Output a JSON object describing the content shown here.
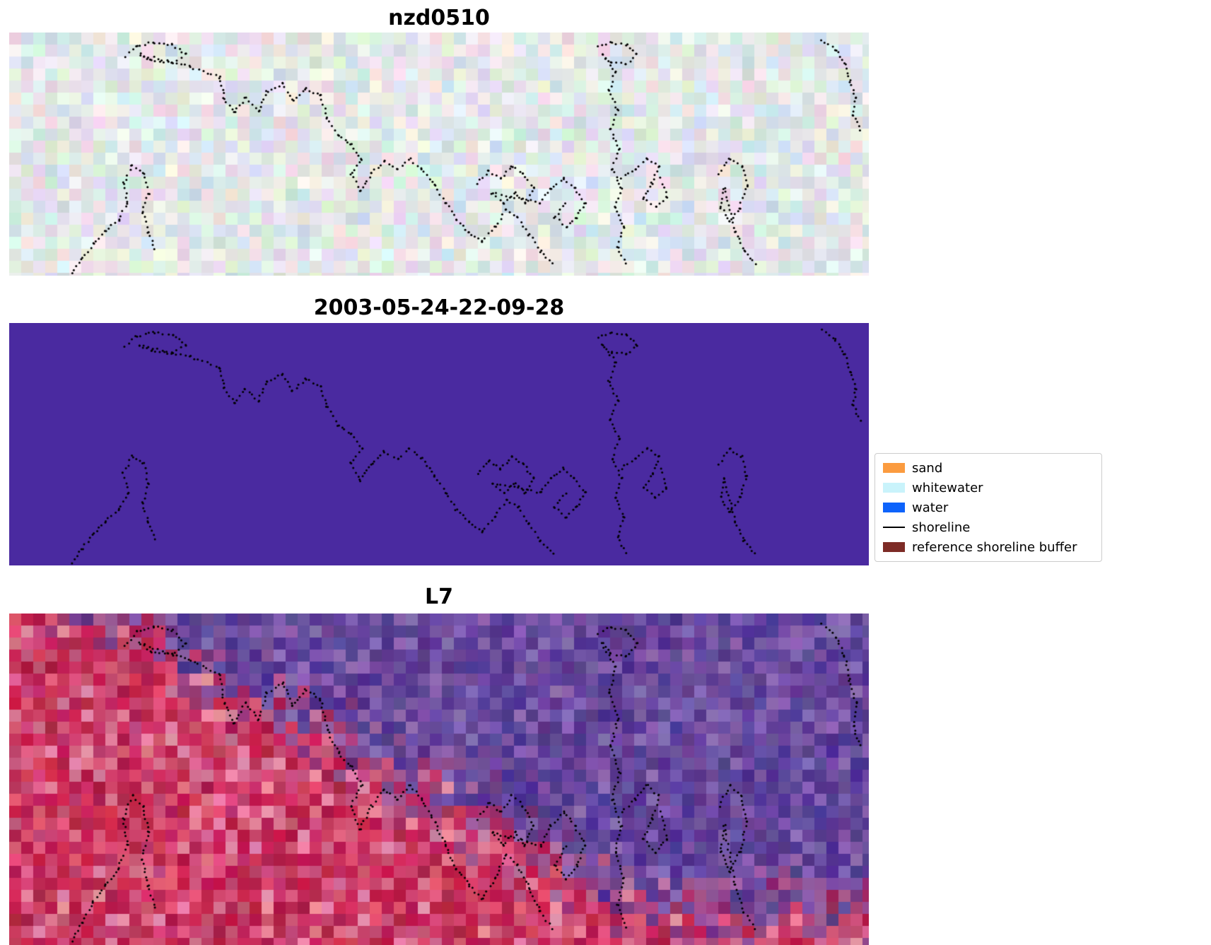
{
  "figure": {
    "background": "#ffffff",
    "shoreline_color": "#000000",
    "panels": [
      {
        "title": "nzd0510",
        "kind": "pastel-noise",
        "palette": [
          "#eef3f0",
          "#dcead8",
          "#d7e3ee",
          "#ecdfe8",
          "#e7eedd",
          "#d9e8e4",
          "#e3ddee",
          "#f3eee8",
          "#cfe3df",
          "#dee6f2",
          "#f0e6ee",
          "#d8efe2",
          "#e8f2f4",
          "#e0d9ea",
          "#f5f2ed",
          "#e6f0e0",
          "#cfe0ea",
          "#edd9e2"
        ]
      },
      {
        "title": "2003-05-24-22-09-28",
        "kind": "solid",
        "fill": "#4a2aa0"
      },
      {
        "title": "L7",
        "kind": "red-purple-noise",
        "palette_red": [
          "#c22150",
          "#d23a62",
          "#b81e4e",
          "#e0557a",
          "#cc2a58",
          "#d96d8d",
          "#c43a66",
          "#e98aa4",
          "#b02048",
          "#d44e74",
          "#c94f77"
        ],
        "palette_purple": [
          "#6a4a9e",
          "#5a3d92",
          "#7c58aa",
          "#4f3390",
          "#8a68b4",
          "#63489c",
          "#553a8e",
          "#7050a4"
        ]
      }
    ],
    "legend": {
      "items": [
        {
          "label": "sand",
          "swatch": "patch",
          "color": "#fb9b3f"
        },
        {
          "label": "whitewater",
          "swatch": "patch",
          "color": "#c9f3fb"
        },
        {
          "label": "water",
          "swatch": "patch",
          "color": "#0d63fb"
        },
        {
          "label": "shoreline",
          "swatch": "line",
          "color": "#000000"
        },
        {
          "label": "reference shoreline buffer",
          "swatch": "patch",
          "color": "#7d2b26"
        }
      ]
    }
  },
  "chart_data": {
    "type": "heatmap",
    "title": "",
    "grid": false,
    "panels": [
      {
        "title": "nzd0510",
        "content": "pastel multispectral satellite image chip (noisy light green/blue/pink pixels) with dotted detected shoreline overlay"
      },
      {
        "title": "2003-05-24-22-09-28",
        "content": "uniform purple classified image (single class fill #4a2aa0) with dotted detected shoreline overlay"
      },
      {
        "title": "L7",
        "content": "Landsat-7 false-colour chip: purple region upper-right, red/pink region lower-left, dotted shoreline tracing the boundary"
      }
    ],
    "legend": {
      "position": "center-right",
      "entries": [
        {
          "label": "sand",
          "color": "#fb9b3f",
          "style": "patch"
        },
        {
          "label": "whitewater",
          "color": "#c9f3fb",
          "style": "patch"
        },
        {
          "label": "water",
          "color": "#0d63fb",
          "style": "patch"
        },
        {
          "label": "shoreline",
          "color": "#000000",
          "style": "line"
        },
        {
          "label": "reference shoreline buffer",
          "color": "#7d2b26",
          "style": "patch"
        }
      ]
    }
  }
}
